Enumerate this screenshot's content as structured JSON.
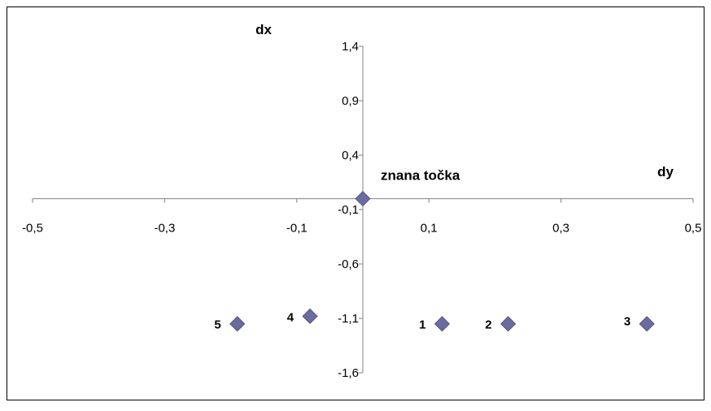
{
  "chart_data": {
    "type": "scatter",
    "xlabel": "dy",
    "ylabel": "dx",
    "xlim": [
      -0.5,
      0.5
    ],
    "ylim": [
      -1.6,
      1.4
    ],
    "x_ticks": [
      "-0,5",
      "-0,3",
      "-0,1",
      "0,1",
      "0,3",
      "0,5"
    ],
    "y_ticks": [
      "1,4",
      "0,9",
      "0,4",
      "-0,1",
      "-0,6",
      "-1,1",
      "-1,6"
    ],
    "grid": false,
    "legend": "none",
    "marker_color": "#6b6b9e",
    "points": [
      {
        "label": "znana točka",
        "x": 0.0,
        "y": 0.0
      },
      {
        "label": "1",
        "x": 0.12,
        "y": -1.15
      },
      {
        "label": "2",
        "x": 0.22,
        "y": -1.15
      },
      {
        "label": "3",
        "x": 0.43,
        "y": -1.15
      },
      {
        "label": "4",
        "x": -0.08,
        "y": -1.08
      },
      {
        "label": "5",
        "x": -0.19,
        "y": -1.15
      }
    ]
  }
}
